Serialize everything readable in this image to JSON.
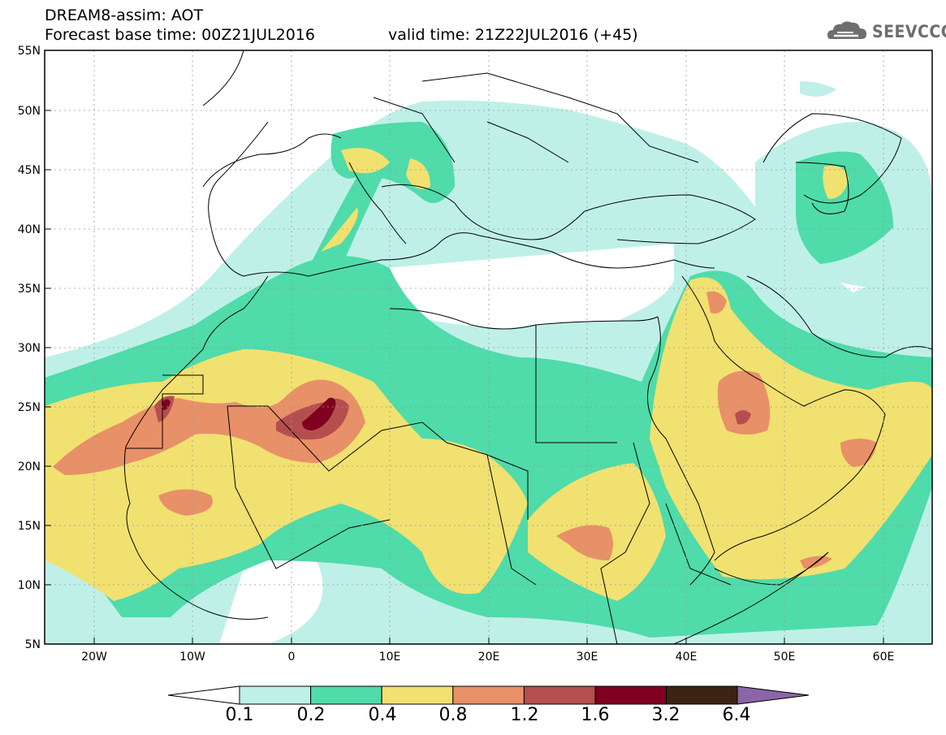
{
  "header": {
    "title": "DREAM8-assim: AOT",
    "base_time": "Forecast base time: 00Z21JUL2016",
    "valid_time": "valid time: 21Z22JUL2016 (+45)"
  },
  "logo": {
    "text": "SEEVCCC",
    "icon": "cloud-icon"
  },
  "axes": {
    "lat_labels": [
      "55N",
      "50N",
      "45N",
      "40N",
      "35N",
      "30N",
      "25N",
      "20N",
      "15N",
      "10N",
      "5N"
    ],
    "lon_labels": [
      "20W",
      "10W",
      "0",
      "10E",
      "20E",
      "30E",
      "40E",
      "50E",
      "60E"
    ],
    "lat_range": [
      5,
      55
    ],
    "lon_range": [
      -25,
      65
    ]
  },
  "colorbar": {
    "colors": [
      "#bff0e8",
      "#4fdbaa",
      "#f1e170",
      "#e89068",
      "#b54f4f",
      "#800020",
      "#3d2412",
      "#8b65a8"
    ],
    "labels": [
      "0.1",
      "0.2",
      "0.4",
      "0.8",
      "1.2",
      "1.6",
      "3.2",
      "6.4"
    ],
    "over_color": "#8b65a8",
    "under_color": "#ffffff"
  },
  "colors": {
    "border": "#000000",
    "grid": "#9a9a9a"
  }
}
